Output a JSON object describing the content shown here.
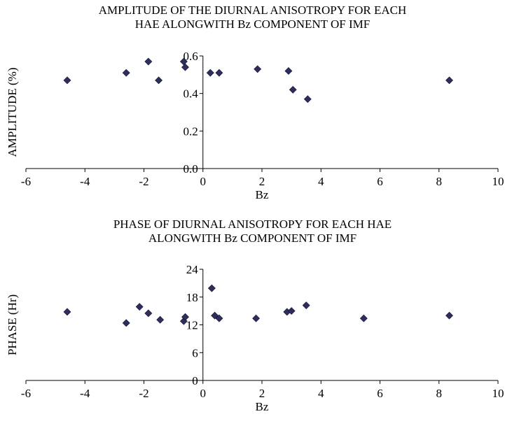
{
  "chart_data": [
    {
      "type": "scatter",
      "title": "AMPLITUDE OF THE DIURNAL ANISOTROPY FOR EACH",
      "subtitle": "HAE ALONGWITH Bz COMPONENT OF IMF",
      "xlabel": "Bz",
      "ylabel": "AMPLITUDE (%)",
      "xlim": [
        -6,
        10
      ],
      "ylim": [
        0,
        0.6
      ],
      "xticks": [
        "-6",
        "-4",
        "-2",
        "0",
        "2",
        "4",
        "6",
        "8",
        "10"
      ],
      "yticks": [
        "0.0",
        "0.2",
        "0.4",
        "0.6"
      ],
      "marker_color": "#2e2e5e",
      "points": [
        {
          "x": -4.6,
          "y": 0.47
        },
        {
          "x": -2.6,
          "y": 0.51
        },
        {
          "x": -1.85,
          "y": 0.57
        },
        {
          "x": -1.5,
          "y": 0.47
        },
        {
          "x": -0.65,
          "y": 0.57
        },
        {
          "x": -0.6,
          "y": 0.54
        },
        {
          "x": 0.25,
          "y": 0.51
        },
        {
          "x": 0.55,
          "y": 0.51
        },
        {
          "x": 1.85,
          "y": 0.53
        },
        {
          "x": 2.9,
          "y": 0.52
        },
        {
          "x": 3.05,
          "y": 0.42
        },
        {
          "x": 3.55,
          "y": 0.37
        },
        {
          "x": 8.35,
          "y": 0.47
        }
      ]
    },
    {
      "type": "scatter",
      "title": "PHASE OF DIURNAL ANISOTROPY FOR EACH HAE",
      "subtitle": "ALONGWITH Bz COMPONENT OF IMF",
      "xlabel": "Bz",
      "ylabel": "PHASE (Hr)",
      "xlim": [
        -6,
        10
      ],
      "ylim": [
        0,
        24
      ],
      "xticks": [
        "-6",
        "-4",
        "-2",
        "0",
        "2",
        "4",
        "6",
        "8",
        "10"
      ],
      "yticks": [
        "0",
        "6",
        "12",
        "18",
        "24"
      ],
      "marker_color": "#2e2e5e",
      "points": [
        {
          "x": -4.6,
          "y": 14.8
        },
        {
          "x": -2.6,
          "y": 12.4
        },
        {
          "x": -2.15,
          "y": 15.9
        },
        {
          "x": -1.85,
          "y": 14.5
        },
        {
          "x": -1.45,
          "y": 13.1
        },
        {
          "x": -0.65,
          "y": 12.8
        },
        {
          "x": -0.6,
          "y": 13.7
        },
        {
          "x": 0.3,
          "y": 19.9
        },
        {
          "x": 0.4,
          "y": 14.0
        },
        {
          "x": 0.55,
          "y": 13.4
        },
        {
          "x": 1.8,
          "y": 13.4
        },
        {
          "x": 2.85,
          "y": 14.8
        },
        {
          "x": 3.0,
          "y": 15.0
        },
        {
          "x": 3.5,
          "y": 16.2
        },
        {
          "x": 5.45,
          "y": 13.4
        },
        {
          "x": 8.35,
          "y": 14.0
        }
      ]
    }
  ]
}
